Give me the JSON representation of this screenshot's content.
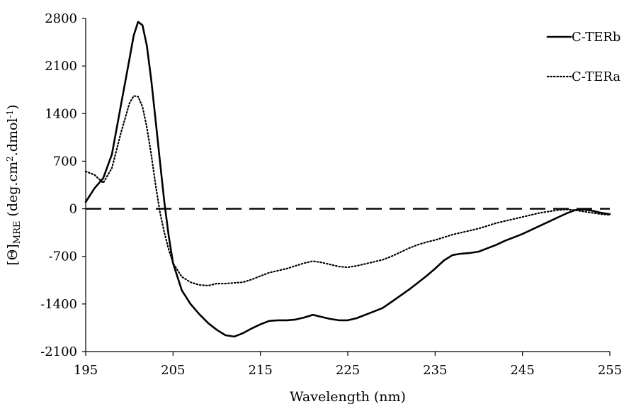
{
  "chart_data": {
    "type": "line",
    "title": "",
    "xlabel": "Wavelength (nm)",
    "ylabel_parts": {
      "theta": "[Θ]",
      "theta_sub": "MRE",
      "unit_a": " (deg.cm",
      "unit_sup_a": "2",
      "unit_b": ".dmol",
      "unit_sup_b": "-1",
      "unit_c": ")"
    },
    "xlim": [
      195,
      255
    ],
    "ylim": [
      -2100,
      2800
    ],
    "xticks": [
      195,
      205,
      215,
      225,
      235,
      245,
      255
    ],
    "yticks": [
      2800,
      2100,
      1400,
      700,
      0,
      -700,
      -1400,
      -2100
    ],
    "grid": false,
    "legend_position": "top-right",
    "series": [
      {
        "name": "C-TERb",
        "style": "solid",
        "x": [
          195,
          196,
          197,
          198,
          199,
          200,
          200.5,
          201,
          201.5,
          202,
          202.5,
          203,
          203.5,
          204,
          204.5,
          205,
          206,
          207,
          208,
          209,
          210,
          211,
          212,
          213,
          214,
          215,
          216,
          217,
          218,
          219,
          220,
          221,
          222,
          223,
          224,
          225,
          226,
          227,
          228,
          229,
          230,
          231,
          232,
          233,
          234,
          235,
          236,
          237,
          238,
          239,
          240,
          241,
          242,
          243,
          244,
          245,
          246,
          247,
          248,
          249,
          250,
          251,
          252,
          253,
          254,
          255
        ],
        "y": [
          100,
          300,
          450,
          800,
          1500,
          2200,
          2550,
          2750,
          2700,
          2400,
          1900,
          1300,
          700,
          100,
          -400,
          -800,
          -1200,
          -1400,
          -1550,
          -1680,
          -1780,
          -1860,
          -1880,
          -1830,
          -1760,
          -1700,
          -1650,
          -1640,
          -1640,
          -1630,
          -1600,
          -1560,
          -1590,
          -1620,
          -1640,
          -1640,
          -1610,
          -1560,
          -1510,
          -1460,
          -1370,
          -1280,
          -1190,
          -1090,
          -990,
          -880,
          -760,
          -680,
          -660,
          -650,
          -630,
          -580,
          -530,
          -470,
          -420,
          -370,
          -310,
          -250,
          -190,
          -130,
          -70,
          -20,
          -10,
          -30,
          -60,
          -80
        ]
      },
      {
        "name": "C-TERa",
        "style": "dotted",
        "x": [
          195,
          196,
          197,
          198,
          199,
          200,
          200.5,
          201,
          201.5,
          202,
          202.5,
          203,
          203.5,
          204,
          204.5,
          205,
          206,
          207,
          208,
          209,
          210,
          211,
          212,
          213,
          214,
          215,
          216,
          217,
          218,
          219,
          220,
          221,
          222,
          223,
          224,
          225,
          226,
          227,
          228,
          229,
          230,
          231,
          232,
          233,
          234,
          235,
          236,
          237,
          238,
          239,
          240,
          241,
          242,
          243,
          244,
          245,
          246,
          247,
          248,
          249,
          250,
          251,
          252,
          253,
          254,
          255
        ],
        "y": [
          550,
          500,
          380,
          600,
          1100,
          1550,
          1660,
          1650,
          1500,
          1200,
          800,
          350,
          -50,
          -350,
          -600,
          -800,
          -1000,
          -1080,
          -1120,
          -1130,
          -1100,
          -1100,
          -1090,
          -1080,
          -1040,
          -990,
          -940,
          -910,
          -880,
          -840,
          -800,
          -770,
          -790,
          -820,
          -850,
          -860,
          -840,
          -810,
          -780,
          -750,
          -700,
          -640,
          -580,
          -530,
          -490,
          -460,
          -420,
          -380,
          -350,
          -320,
          -290,
          -250,
          -210,
          -180,
          -150,
          -120,
          -90,
          -60,
          -40,
          -20,
          -10,
          -20,
          -40,
          -60,
          -80,
          -90
        ]
      },
      {
        "name": "",
        "style": "dashed",
        "x": [
          195,
          255
        ],
        "y": [
          0,
          0
        ]
      }
    ]
  }
}
